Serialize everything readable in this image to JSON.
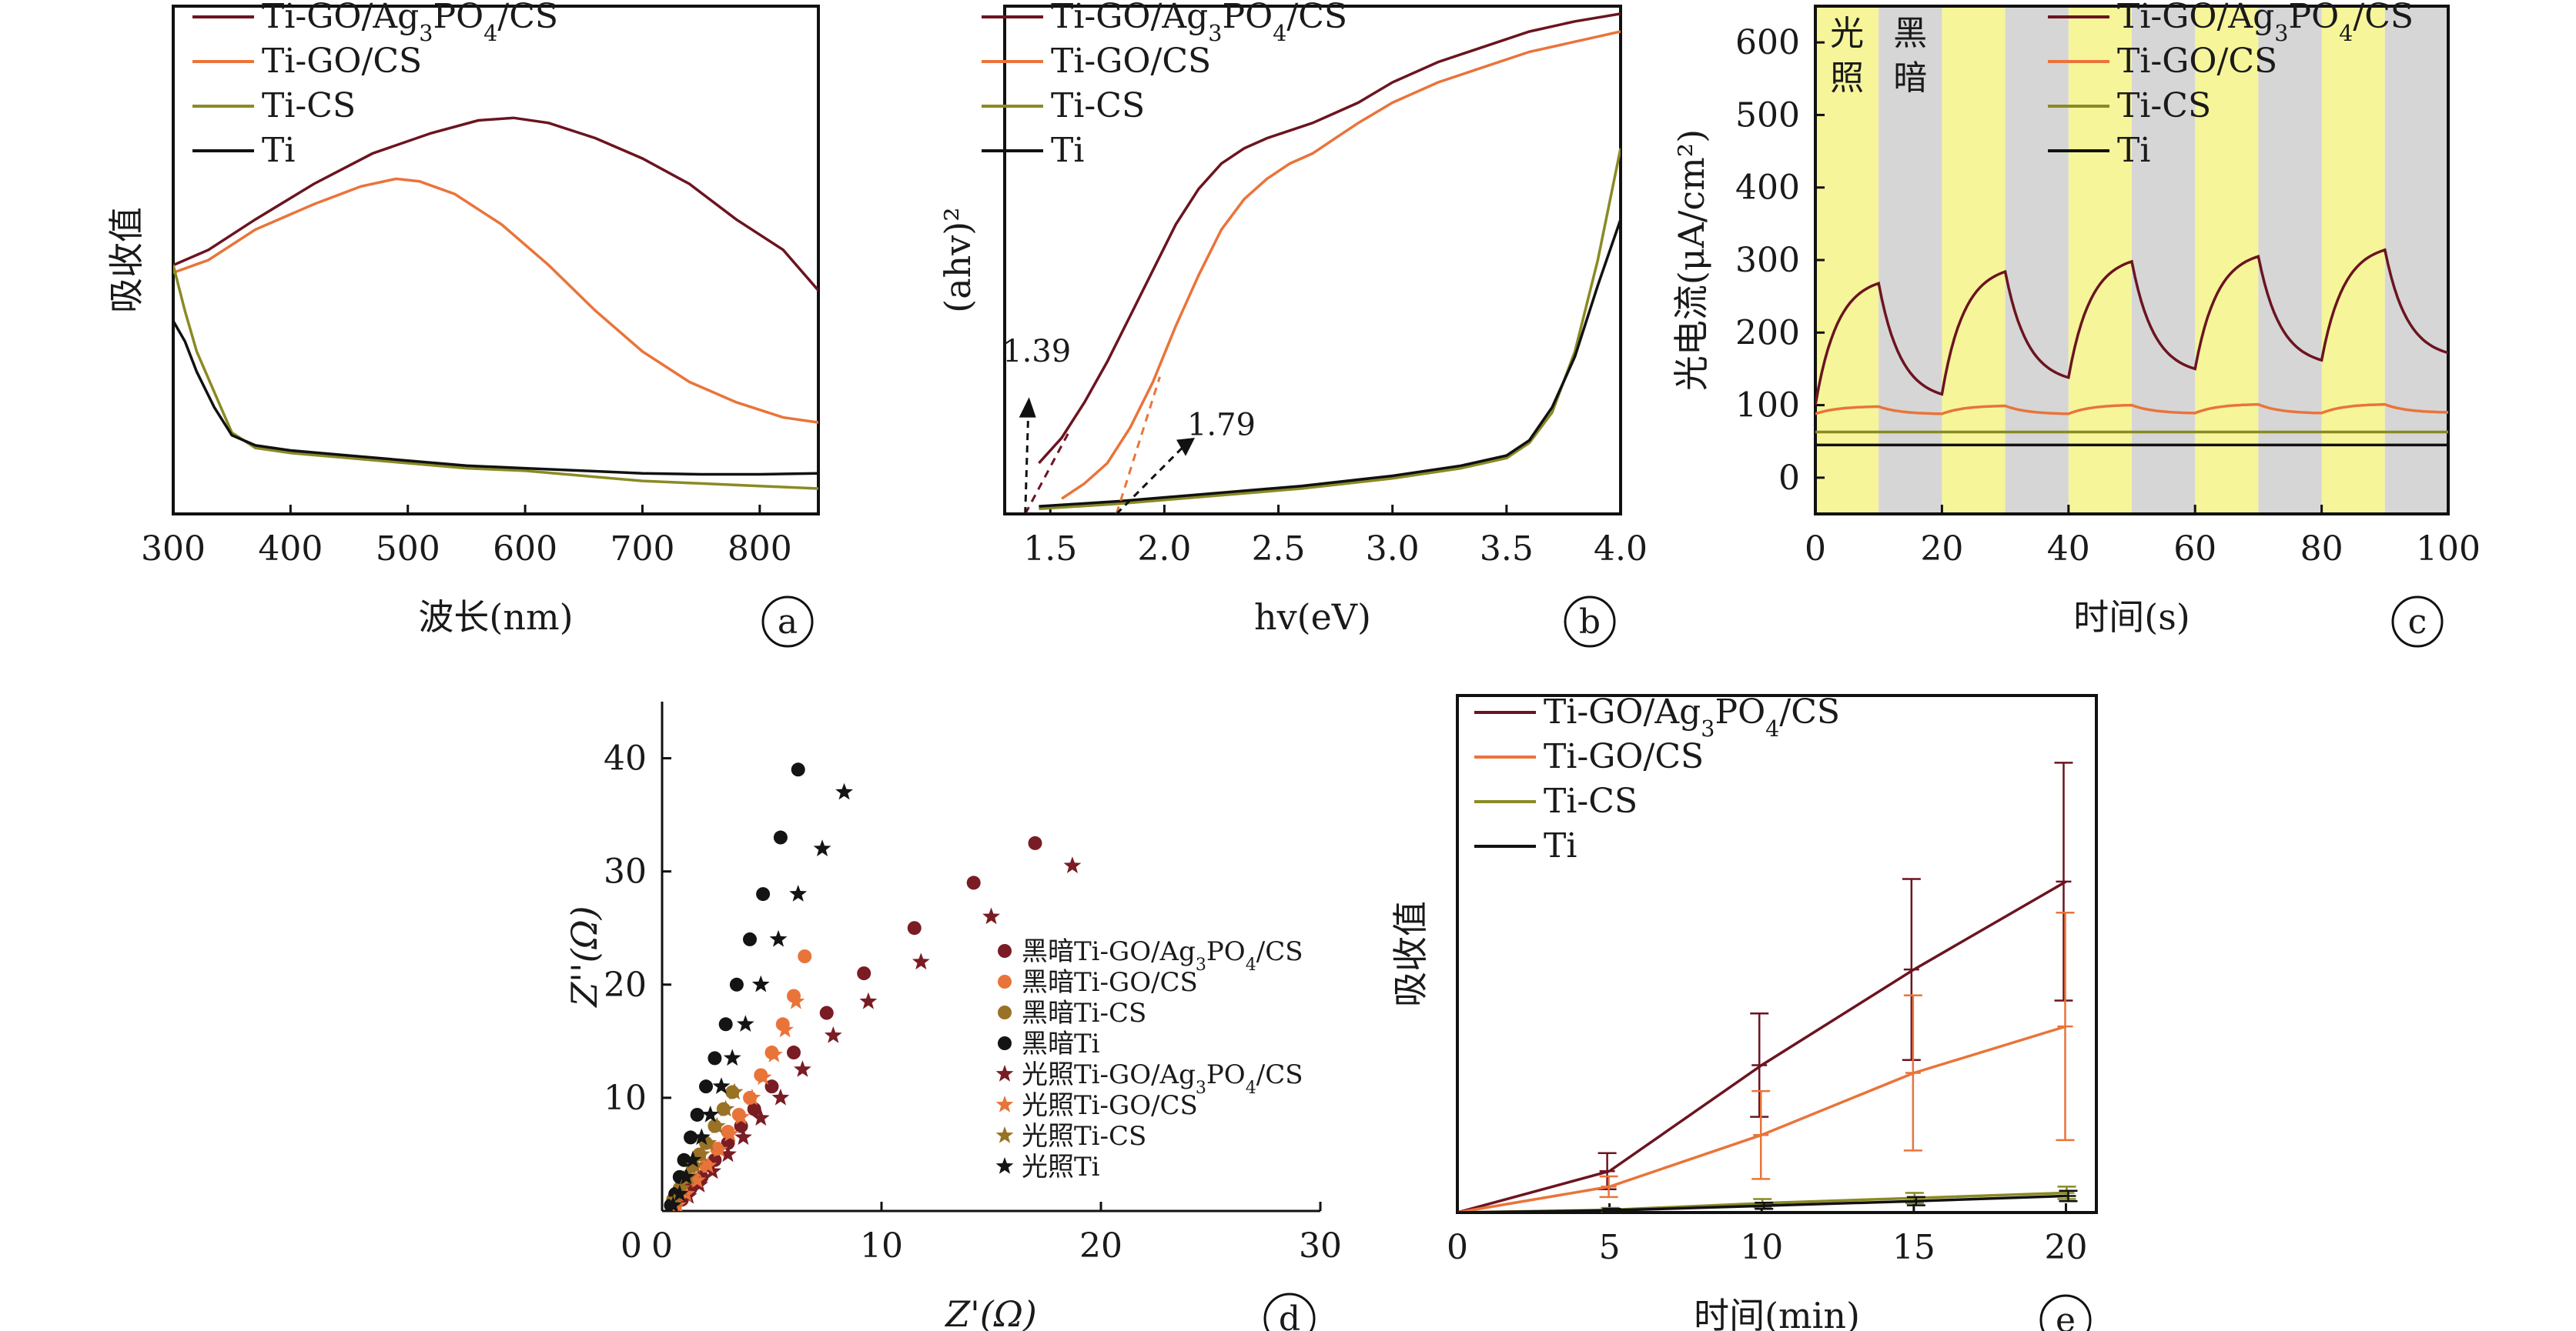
{
  "chart_data": [
    {
      "id": "a",
      "type": "line",
      "panel_label": "a",
      "xlabel": "波长(nm)",
      "ylabel": "吸收值",
      "xlim": [
        300,
        850
      ],
      "xticks": [
        300,
        400,
        500,
        600,
        700,
        800
      ],
      "ylim": [
        0,
        1
      ],
      "show_yticks": false,
      "grid": false,
      "legend": "top-left",
      "series": [
        {
          "name": "Ti-GO/Ag3PO4/CS",
          "color": "#6b1420",
          "x": [
            300,
            330,
            370,
            420,
            470,
            520,
            560,
            590,
            620,
            660,
            700,
            740,
            780,
            820,
            850
          ],
          "y": [
            0.49,
            0.52,
            0.58,
            0.65,
            0.71,
            0.75,
            0.775,
            0.78,
            0.77,
            0.74,
            0.7,
            0.65,
            0.58,
            0.52,
            0.44
          ]
        },
        {
          "name": "Ti-GO/CS",
          "color": "#e9743a",
          "x": [
            300,
            330,
            370,
            420,
            460,
            490,
            510,
            540,
            580,
            620,
            660,
            700,
            740,
            780,
            820,
            850
          ],
          "y": [
            0.475,
            0.5,
            0.56,
            0.61,
            0.645,
            0.66,
            0.655,
            0.63,
            0.57,
            0.49,
            0.4,
            0.32,
            0.26,
            0.22,
            0.19,
            0.18
          ]
        },
        {
          "name": "Ti-CS",
          "color": "#8a8a24",
          "x": [
            300,
            310,
            320,
            335,
            350,
            370,
            400,
            450,
            500,
            550,
            600,
            650,
            700,
            750,
            800,
            850
          ],
          "y": [
            0.49,
            0.4,
            0.32,
            0.24,
            0.16,
            0.13,
            0.12,
            0.11,
            0.1,
            0.09,
            0.085,
            0.075,
            0.065,
            0.06,
            0.055,
            0.05
          ]
        },
        {
          "name": "Ti",
          "color": "#111111",
          "x": [
            300,
            310,
            320,
            335,
            350,
            370,
            400,
            450,
            500,
            550,
            600,
            650,
            700,
            750,
            800,
            850
          ],
          "y": [
            0.38,
            0.34,
            0.28,
            0.21,
            0.155,
            0.135,
            0.125,
            0.115,
            0.105,
            0.095,
            0.09,
            0.085,
            0.08,
            0.078,
            0.078,
            0.08
          ]
        }
      ]
    },
    {
      "id": "b",
      "type": "line",
      "panel_label": "b",
      "xlabel": "hv(eV)",
      "ylabel": "(ahv)²",
      "xlim": [
        1.3,
        4.0
      ],
      "xticks": [
        1.5,
        2.0,
        2.5,
        3.0,
        3.5,
        4.0
      ],
      "ylim": [
        0,
        1
      ],
      "show_yticks": false,
      "grid": false,
      "legend": "top-left",
      "annotations": [
        {
          "text": "1.39",
          "x": 1.39
        },
        {
          "text": "1.79",
          "x": 1.79
        }
      ],
      "series": [
        {
          "name": "Ti-GO/Ag3PO4/CS",
          "color": "#6b1420",
          "x": [
            1.45,
            1.55,
            1.65,
            1.75,
            1.85,
            1.95,
            2.05,
            2.15,
            2.25,
            2.35,
            2.45,
            2.55,
            2.65,
            2.75,
            2.85,
            3.0,
            3.2,
            3.4,
            3.6,
            3.8,
            4.0
          ],
          "y": [
            0.1,
            0.15,
            0.22,
            0.3,
            0.39,
            0.48,
            0.57,
            0.64,
            0.69,
            0.72,
            0.74,
            0.755,
            0.77,
            0.79,
            0.81,
            0.85,
            0.89,
            0.92,
            0.95,
            0.97,
            0.985
          ]
        },
        {
          "name": "Ti-GO/CS",
          "color": "#e9743a",
          "x": [
            1.55,
            1.65,
            1.75,
            1.85,
            1.95,
            2.05,
            2.15,
            2.25,
            2.35,
            2.45,
            2.55,
            2.65,
            2.75,
            2.85,
            3.0,
            3.2,
            3.4,
            3.6,
            3.8,
            4.0
          ],
          "y": [
            0.03,
            0.06,
            0.1,
            0.17,
            0.26,
            0.37,
            0.47,
            0.56,
            0.62,
            0.66,
            0.69,
            0.71,
            0.74,
            0.77,
            0.81,
            0.85,
            0.88,
            0.91,
            0.93,
            0.95
          ]
        },
        {
          "name": "Ti-CS",
          "color": "#8a8a24",
          "x": [
            1.45,
            1.8,
            2.2,
            2.6,
            3.0,
            3.3,
            3.5,
            3.6,
            3.7,
            3.8,
            3.9,
            4.0
          ],
          "y": [
            0.01,
            0.02,
            0.035,
            0.05,
            0.07,
            0.09,
            0.11,
            0.14,
            0.2,
            0.32,
            0.5,
            0.72
          ]
        },
        {
          "name": "Ti",
          "color": "#111111",
          "x": [
            1.45,
            1.8,
            2.2,
            2.6,
            3.0,
            3.3,
            3.5,
            3.6,
            3.7,
            3.8,
            3.9,
            4.0
          ],
          "y": [
            0.015,
            0.025,
            0.04,
            0.055,
            0.075,
            0.095,
            0.115,
            0.145,
            0.21,
            0.31,
            0.45,
            0.58
          ]
        }
      ]
    },
    {
      "id": "c",
      "type": "line",
      "panel_label": "c",
      "xlabel": "时间(s)",
      "ylabel": "光电流(μA/cm²)",
      "xlim": [
        0,
        100
      ],
      "xticks": [
        0,
        20,
        40,
        60,
        80,
        100
      ],
      "ylim": [
        -50,
        650
      ],
      "yticks": [
        0,
        100,
        200,
        300,
        400,
        500,
        600
      ],
      "grid": false,
      "legend": "top-right",
      "light_bands": [
        [
          0,
          10
        ],
        [
          20,
          30
        ],
        [
          40,
          50
        ],
        [
          60,
          70
        ],
        [
          80,
          90
        ]
      ],
      "dark_bands": [
        [
          10,
          20
        ],
        [
          30,
          40
        ],
        [
          50,
          60
        ],
        [
          70,
          80
        ],
        [
          90,
          100
        ]
      ],
      "band_labels": {
        "light": "光照",
        "dark": "黑暗"
      },
      "light_color": "#f6f59a",
      "dark_color": "#d6d6d6",
      "series": [
        {
          "name": "Ti-GO/Ag3PO4/CS",
          "color": "#6b1420",
          "cycles": [
            {
              "on_start": 100,
              "on_end": 268,
              "off_end": 115
            },
            {
              "on_start": 115,
              "on_end": 284,
              "off_end": 138
            },
            {
              "on_start": 138,
              "on_end": 298,
              "off_end": 150
            },
            {
              "on_start": 150,
              "on_end": 305,
              "off_end": 162
            },
            {
              "on_start": 162,
              "on_end": 314,
              "off_end": 172
            }
          ]
        },
        {
          "name": "Ti-GO/CS",
          "color": "#e9743a",
          "cycles": [
            {
              "on_start": 88,
              "on_end": 98,
              "off_end": 88
            },
            {
              "on_start": 88,
              "on_end": 99,
              "off_end": 88
            },
            {
              "on_start": 88,
              "on_end": 100,
              "off_end": 89
            },
            {
              "on_start": 89,
              "on_end": 101,
              "off_end": 89
            },
            {
              "on_start": 89,
              "on_end": 101,
              "off_end": 90
            }
          ]
        },
        {
          "name": "Ti-CS",
          "color": "#8a8a24",
          "constant": 63
        },
        {
          "name": "Ti",
          "color": "#111111",
          "constant": 45
        }
      ]
    },
    {
      "id": "d",
      "type": "scatter",
      "panel_label": "d",
      "xlabel": "Z'(Ω)",
      "ylabel": "Z''(Ω)",
      "xlim": [
        0,
        30
      ],
      "xticks": [
        0,
        10,
        20,
        30
      ],
      "ylim": [
        0,
        45
      ],
      "yticks": [
        10,
        20,
        30,
        40
      ],
      "grid": false,
      "legend": "right",
      "series": [
        {
          "name": "黑暗Ti-GO/Ag3PO4/CS",
          "marker": "circle",
          "color": "#7a1c24",
          "x": [
            0.5,
            0.9,
            1.3,
            1.8,
            2.4,
            3.0,
            3.6,
            4.2,
            5.0,
            6.0,
            7.5,
            9.2,
            11.5,
            14.2,
            17.0
          ],
          "y": [
            0.5,
            1.0,
            2.0,
            3.0,
            4.5,
            6.0,
            7.5,
            9.0,
            11.0,
            14.0,
            17.5,
            21.0,
            25.0,
            29.0,
            32.5
          ]
        },
        {
          "name": "黑暗Ti-GO/CS",
          "marker": "circle",
          "color": "#e9743a",
          "x": [
            0.6,
            1.0,
            1.5,
            2.0,
            2.5,
            3.0,
            3.5,
            4.0,
            4.5,
            5.0,
            5.5,
            6.0,
            6.5
          ],
          "y": [
            0.5,
            1.5,
            2.8,
            4.0,
            5.5,
            7.0,
            8.5,
            10.0,
            12.0,
            14.0,
            16.5,
            19.0,
            22.5
          ]
        },
        {
          "name": "黑暗Ti-CS",
          "marker": "circle",
          "color": "#9a7226",
          "x": [
            0.5,
            0.8,
            1.1,
            1.4,
            1.7,
            2.0,
            2.4,
            2.8,
            3.2
          ],
          "y": [
            1.0,
            2.0,
            3.0,
            4.0,
            5.0,
            6.0,
            7.5,
            9.0,
            10.5
          ]
        },
        {
          "name": "黑暗Ti",
          "marker": "circle",
          "color": "#141414",
          "x": [
            0.4,
            0.6,
            0.8,
            1.0,
            1.3,
            1.6,
            2.0,
            2.4,
            2.9,
            3.4,
            4.0,
            4.6,
            5.4,
            6.2
          ],
          "y": [
            0.5,
            1.5,
            3.0,
            4.5,
            6.5,
            8.5,
            11.0,
            13.5,
            16.5,
            20.0,
            24.0,
            28.0,
            33.0,
            39.0
          ]
        },
        {
          "name": "光照Ti-GO/Ag3PO4/CS",
          "marker": "star",
          "color": "#7a1c24",
          "x": [
            0.7,
            1.2,
            1.7,
            2.3,
            3.0,
            3.7,
            4.5,
            5.4,
            6.4,
            7.8,
            9.4,
            11.8,
            15.0,
            18.7
          ],
          "y": [
            0.5,
            1.3,
            2.3,
            3.5,
            5.0,
            6.5,
            8.2,
            10.0,
            12.5,
            15.5,
            18.5,
            22.0,
            26.0,
            30.5
          ]
        },
        {
          "name": "光照Ti-GO/CS",
          "marker": "star",
          "color": "#e9743a",
          "x": [
            0.7,
            1.1,
            1.6,
            2.1,
            2.6,
            3.1,
            3.6,
            4.1,
            4.6,
            5.1,
            5.6,
            6.1
          ],
          "y": [
            0.5,
            1.5,
            2.7,
            4.0,
            5.4,
            6.8,
            8.3,
            10.0,
            11.8,
            13.8,
            16.0,
            18.5
          ]
        },
        {
          "name": "光照Ti-CS",
          "marker": "star",
          "color": "#9a7226",
          "x": [
            0.6,
            0.9,
            1.2,
            1.5,
            1.8,
            2.1,
            2.5,
            2.9,
            3.3
          ],
          "y": [
            1.0,
            2.0,
            3.0,
            4.0,
            5.0,
            6.0,
            7.5,
            9.0,
            10.5
          ]
        },
        {
          "name": "光照Ti",
          "marker": "star",
          "color": "#141414",
          "x": [
            0.5,
            0.8,
            1.1,
            1.4,
            1.8,
            2.2,
            2.7,
            3.2,
            3.8,
            4.5,
            5.3,
            6.2,
            7.3,
            8.3
          ],
          "y": [
            0.5,
            1.5,
            3.0,
            4.5,
            6.5,
            8.5,
            11.0,
            13.5,
            16.5,
            20.0,
            24.0,
            28.0,
            32.0,
            37.0
          ]
        }
      ]
    },
    {
      "id": "e",
      "type": "line",
      "panel_label": "e",
      "xlabel": "时间(min)",
      "ylabel": "吸收值",
      "xlim": [
        0,
        21
      ],
      "xticks": [
        0,
        5,
        10,
        15,
        20
      ],
      "ylim": [
        0,
        1
      ],
      "show_yticks": false,
      "grid": false,
      "legend": "top-left",
      "error_bars": true,
      "series": [
        {
          "name": "Ti-GO/Ag3PO4/CS",
          "color": "#6b1420",
          "x": [
            0,
            5,
            10,
            15,
            20
          ],
          "y": [
            0,
            0.08,
            0.285,
            0.47,
            0.64
          ],
          "err": [
            0,
            0.035,
            0.1,
            0.175,
            0.23
          ]
        },
        {
          "name": "Ti-GO/CS",
          "color": "#e9743a",
          "x": [
            0,
            5,
            10,
            15,
            20
          ],
          "y": [
            0,
            0.05,
            0.15,
            0.27,
            0.36
          ],
          "err": [
            0,
            0.02,
            0.085,
            0.15,
            0.22
          ]
        },
        {
          "name": "Ti-CS",
          "color": "#8a8a24",
          "x": [
            0,
            5,
            10,
            15,
            20
          ],
          "y": [
            0,
            0.005,
            0.018,
            0.028,
            0.038
          ],
          "err": [
            0,
            0.004,
            0.008,
            0.01,
            0.012
          ]
        },
        {
          "name": "Ti",
          "color": "#111111",
          "x": [
            0,
            5,
            10,
            15,
            20
          ],
          "y": [
            0,
            0.004,
            0.013,
            0.022,
            0.032
          ],
          "err": [
            0,
            0.003,
            0.006,
            0.008,
            0.01
          ]
        }
      ]
    }
  ]
}
